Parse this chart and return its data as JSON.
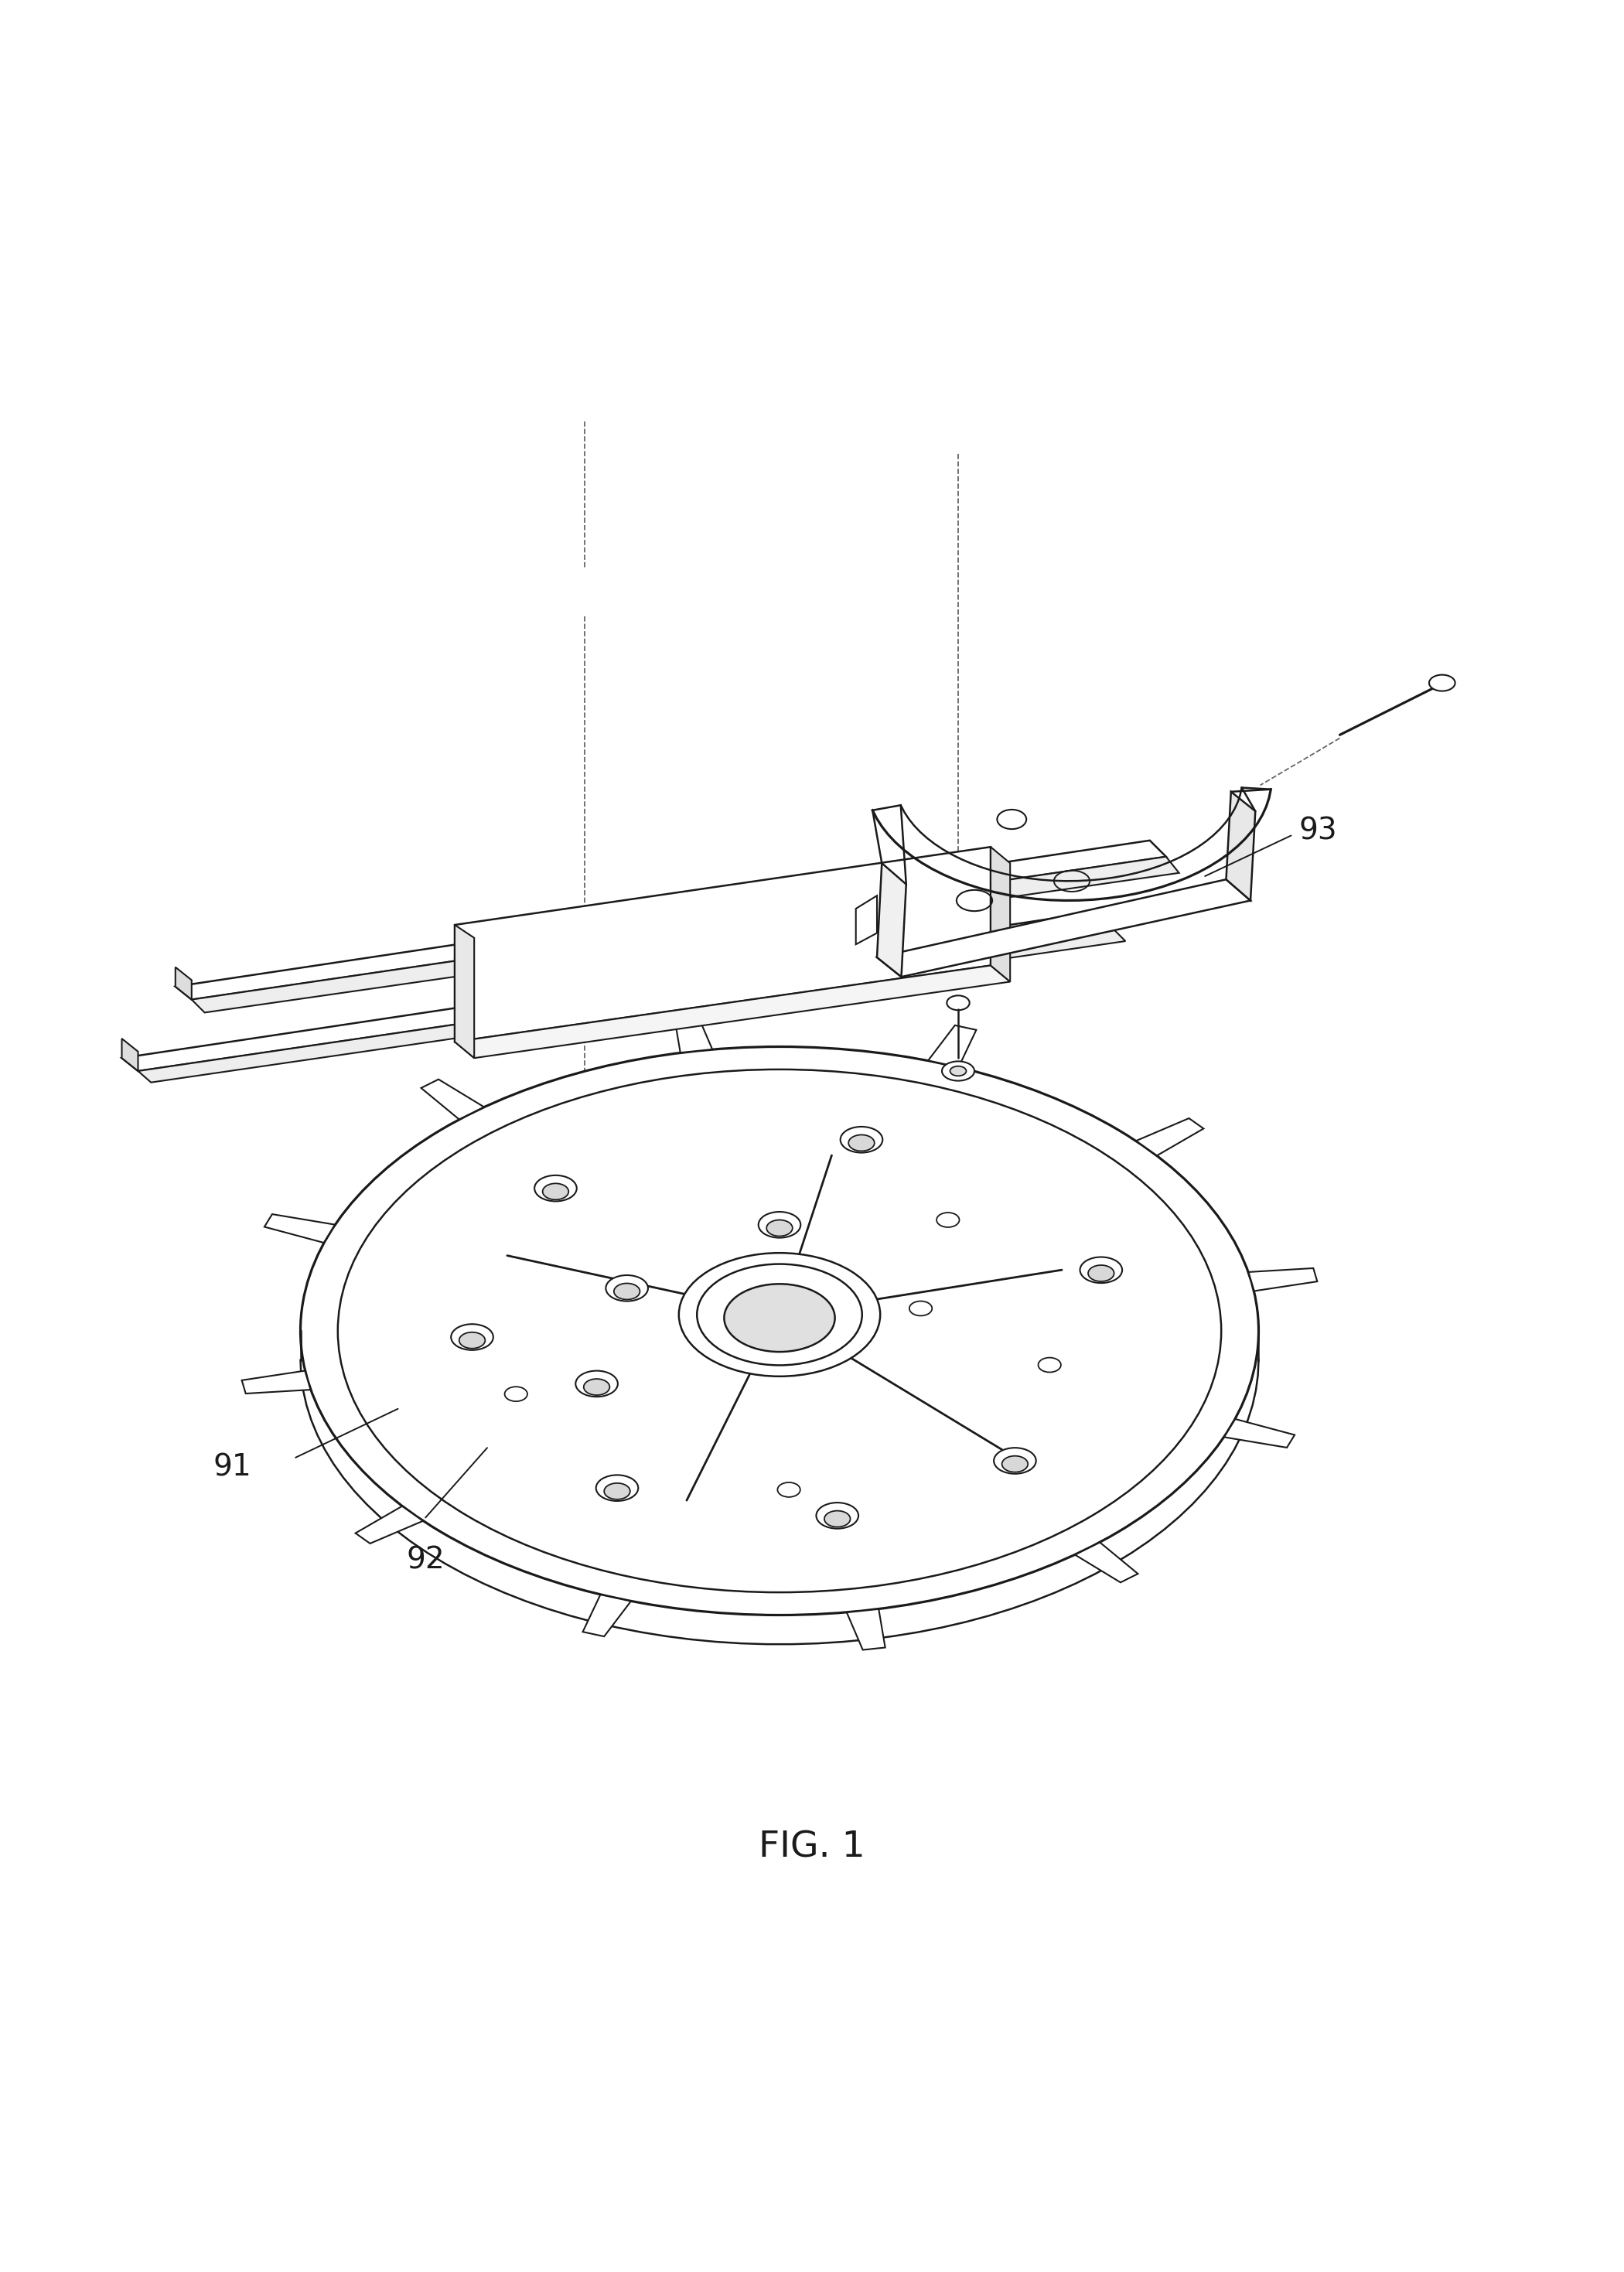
{
  "title": "FIG. 1",
  "background_color": "#ffffff",
  "line_color": "#1a1a1a",
  "line_width": 1.8,
  "label_fontsize": 28,
  "title_fontsize": 34,
  "labels": {
    "91": [
      0.175,
      0.295
    ],
    "92": [
      0.27,
      0.255
    ],
    "93": [
      0.72,
      0.73
    ]
  }
}
